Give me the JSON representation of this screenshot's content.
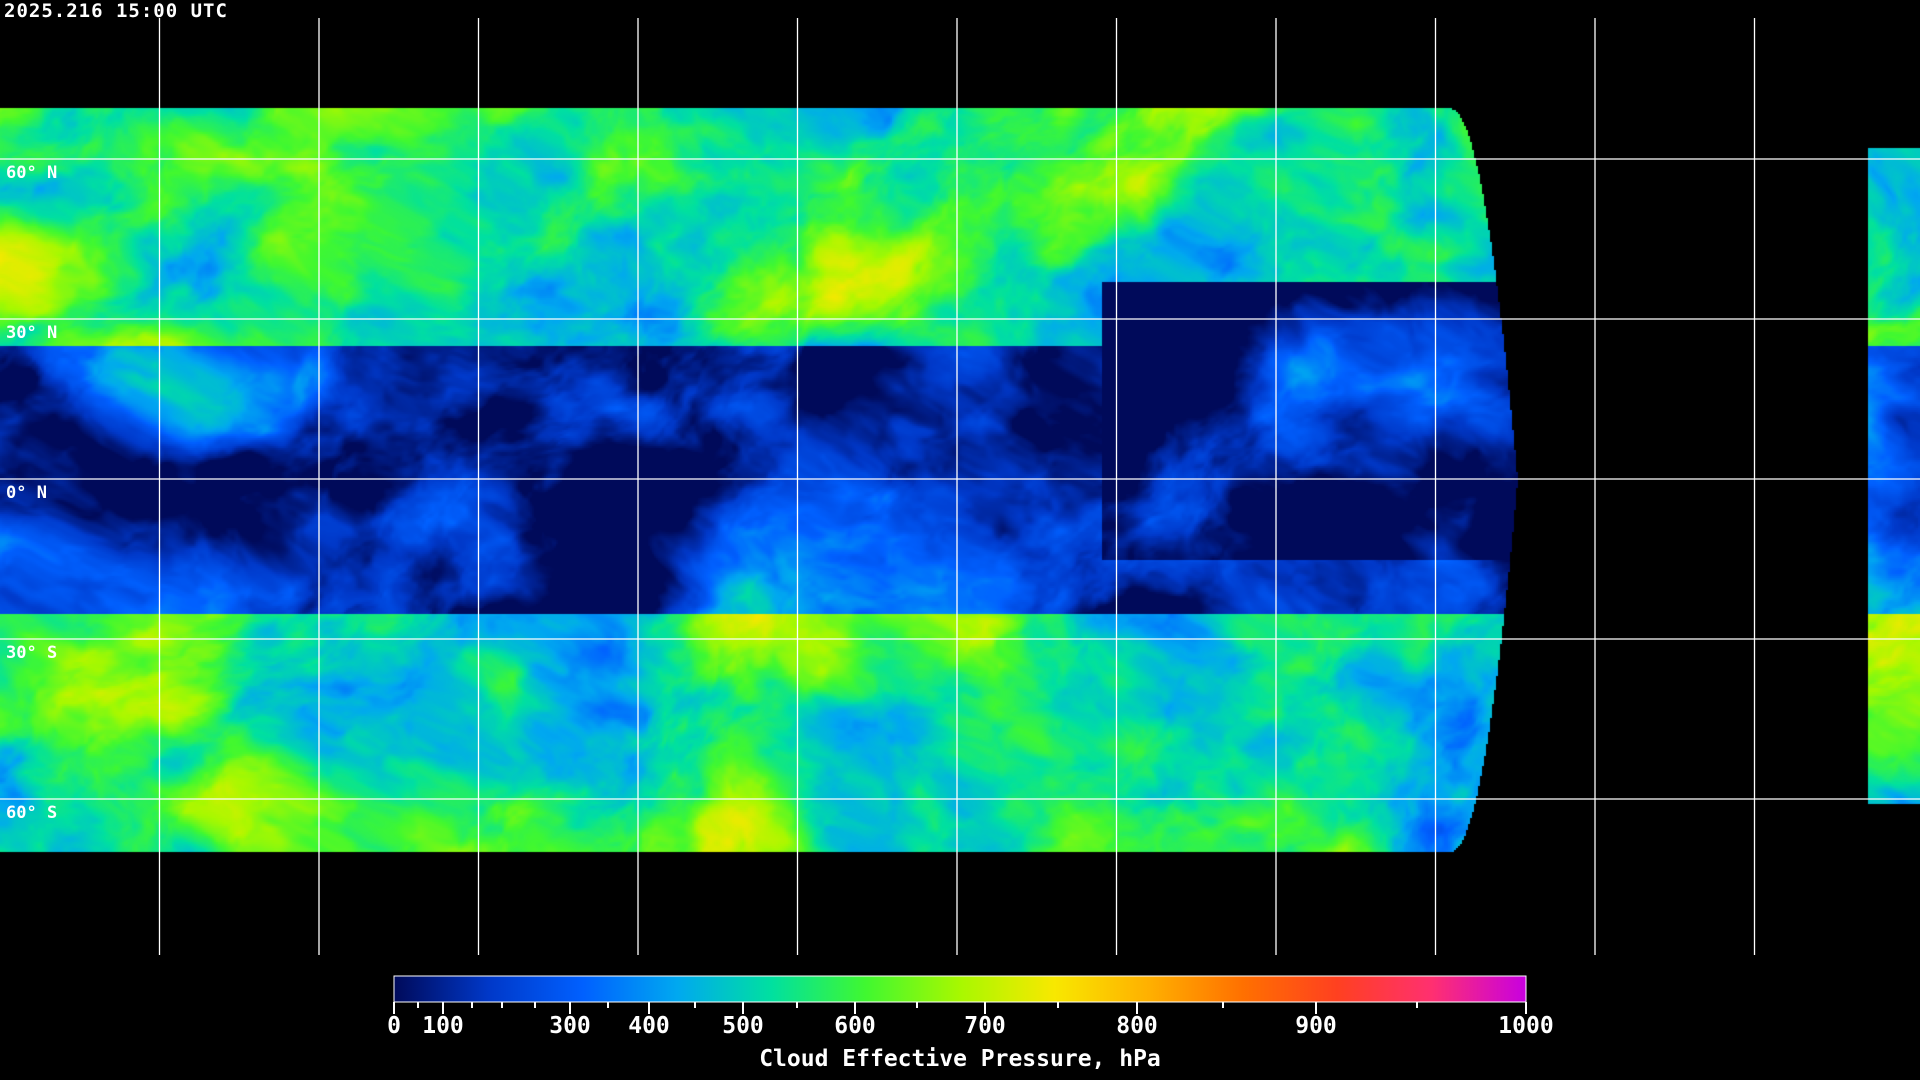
{
  "header": {
    "title": "2025.216 15:00 UTC"
  },
  "map": {
    "lat_labels": [
      "60° N",
      "30° N",
      "0° N",
      "30° S",
      "60° S"
    ],
    "lat_values": [
      60,
      30,
      0,
      -30,
      -60
    ],
    "grid_color": "#ffffff",
    "coastline_color": "#ffffff",
    "no_data_color": "#000000"
  },
  "chart_data": {
    "type": "heatmap",
    "title": "2025.216 15:00 UTC",
    "colorbar": {
      "label": "Cloud Effective Pressure, hPa",
      "range": [
        0,
        1000
      ],
      "tick_labels": [
        "0",
        "100",
        "300",
        "400",
        "500",
        "600",
        "700",
        "800",
        "900",
        "1000"
      ],
      "tick_values": [
        0,
        100,
        300,
        400,
        500,
        600,
        700,
        800,
        900,
        1000
      ],
      "minor_ticks": [
        50,
        150,
        200,
        250,
        350,
        450,
        550,
        650,
        750,
        850,
        950
      ],
      "colors": [
        "#000a5a",
        "#0038c8",
        "#0060ff",
        "#00a8f0",
        "#00e0a0",
        "#40f830",
        "#a8f800",
        "#f8e800",
        "#ffb000",
        "#ff7000",
        "#ff4020",
        "#ff3070",
        "#c800e0"
      ]
    }
  }
}
